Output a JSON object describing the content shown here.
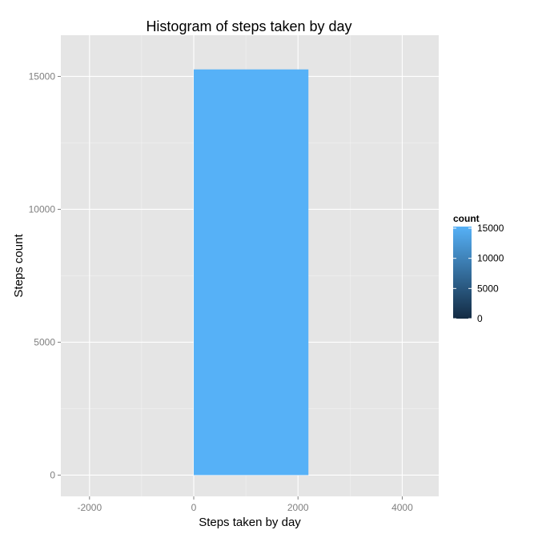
{
  "chart_data": {
    "type": "bar",
    "title": "Histogram of steps taken by day",
    "xlabel": "Steps taken by day",
    "ylabel": "Steps count",
    "xlim": [
      -2550,
      4700
    ],
    "ylim": [
      0,
      16000
    ],
    "x_ticks": [
      -2000,
      0,
      2000,
      4000
    ],
    "x_tick_labels": [
      "-2000",
      "0",
      "2000",
      "4000"
    ],
    "y_ticks": [
      0,
      5000,
      10000,
      15000
    ],
    "y_tick_labels": [
      "0",
      "5000",
      "10000",
      "15000"
    ],
    "bins": [
      {
        "start": 0,
        "end": 2200,
        "count": 15264
      }
    ],
    "grid": true,
    "background_color": "#e5e5e5",
    "grid_color": "#ffffff",
    "legend": {
      "title": "count",
      "placement": "right",
      "min": 0,
      "max": 15264,
      "ticks": [
        0,
        5000,
        10000,
        15000
      ],
      "tick_labels": [
        "0",
        "5000",
        "10000",
        "15000"
      ],
      "low_color": "#132b43",
      "high_color": "#56b1f7"
    }
  }
}
